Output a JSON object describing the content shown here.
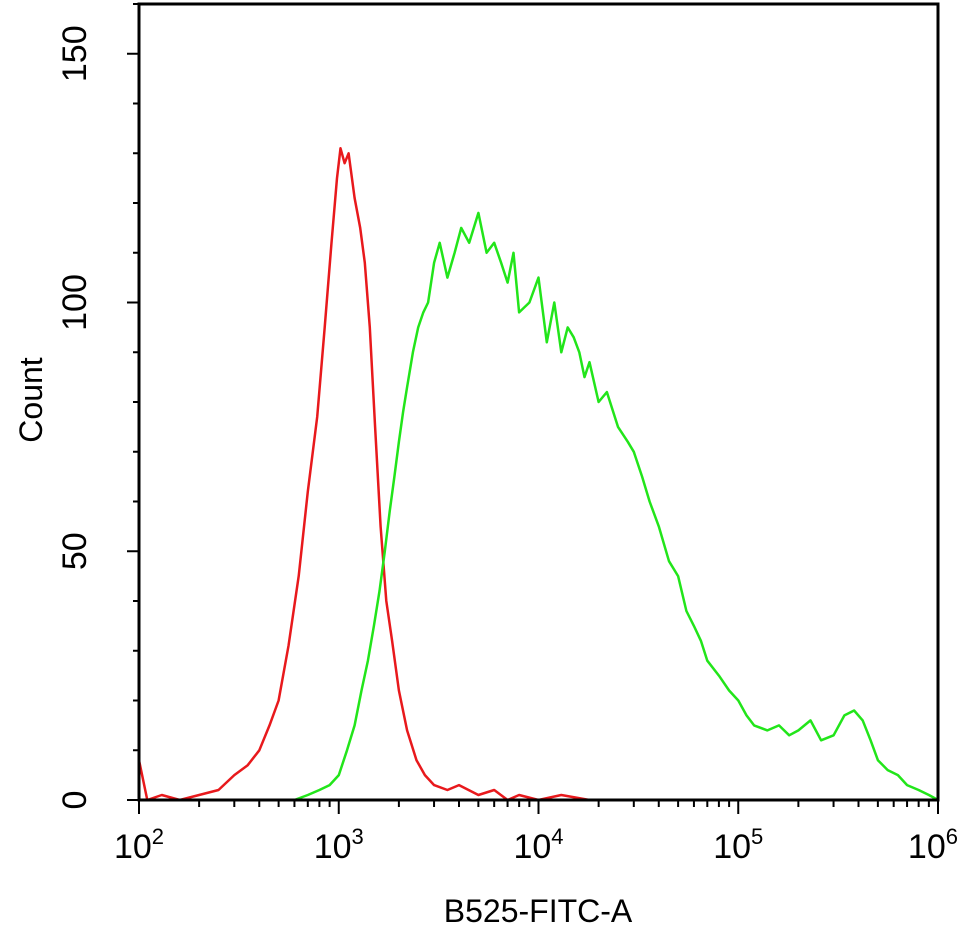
{
  "chart_data": {
    "type": "line",
    "title": "",
    "xlabel": "B525-FITC-A",
    "ylabel": "Count",
    "x_scale": "log",
    "xlim": [
      100,
      1000000
    ],
    "ylim": [
      0,
      160
    ],
    "x_ticks": [
      {
        "value": 100,
        "base": "10",
        "exp": "2"
      },
      {
        "value": 1000,
        "base": "10",
        "exp": "3"
      },
      {
        "value": 10000,
        "base": "10",
        "exp": "4"
      },
      {
        "value": 100000,
        "base": "10",
        "exp": "5"
      },
      {
        "value": 1000000,
        "base": "10",
        "exp": "6"
      }
    ],
    "y_ticks": [
      {
        "value": 0,
        "label": "0"
      },
      {
        "value": 50,
        "label": "50"
      },
      {
        "value": 100,
        "label": "100"
      },
      {
        "value": 150,
        "label": "150"
      }
    ],
    "grid": false,
    "legend": "none",
    "series": [
      {
        "color": "#e8191c",
        "x": [
          100,
          110,
          130,
          160,
          200,
          250,
          300,
          350,
          400,
          450,
          500,
          560,
          630,
          700,
          780,
          850,
          920,
          980,
          1020,
          1070,
          1120,
          1200,
          1280,
          1350,
          1430,
          1520,
          1620,
          1730,
          1850,
          2000,
          2200,
          2450,
          2700,
          3000,
          3500,
          4000,
          5000,
          6000,
          7000,
          8000,
          10000,
          13000,
          18000
        ],
        "y": [
          8,
          0,
          1,
          0,
          1,
          2,
          5,
          7,
          10,
          15,
          20,
          31,
          45,
          62,
          77,
          95,
          112,
          125,
          131,
          128,
          130,
          121,
          115,
          108,
          95,
          75,
          55,
          40,
          32,
          22,
          14,
          8,
          5,
          3,
          2,
          3,
          1,
          2,
          0,
          1,
          0,
          1,
          0
        ]
      },
      {
        "color": "#22e51a",
        "x": [
          600,
          700,
          800,
          900,
          1000,
          1100,
          1200,
          1300,
          1400,
          1500,
          1600,
          1700,
          1800,
          1900,
          2000,
          2100,
          2200,
          2350,
          2500,
          2650,
          2800,
          3000,
          3200,
          3500,
          3800,
          4100,
          4500,
          5000,
          5500,
          6000,
          6500,
          7000,
          7500,
          8000,
          9000,
          10000,
          11000,
          12000,
          13000,
          14000,
          15000,
          16000,
          17000,
          18000,
          20000,
          22000,
          25000,
          28000,
          30000,
          33000,
          36000,
          40000,
          45000,
          50000,
          55000,
          60000,
          65000,
          70000,
          80000,
          90000,
          100000,
          110000,
          120000,
          140000,
          160000,
          180000,
          200000,
          230000,
          260000,
          300000,
          340000,
          380000,
          420000,
          460000,
          500000,
          560000,
          630000,
          700000,
          800000,
          900000,
          1000000
        ],
        "y": [
          0,
          1,
          2,
          3,
          5,
          10,
          15,
          22,
          28,
          35,
          42,
          50,
          58,
          65,
          72,
          78,
          83,
          90,
          95,
          98,
          100,
          108,
          112,
          105,
          110,
          115,
          112,
          118,
          110,
          112,
          108,
          104,
          110,
          98,
          100,
          105,
          92,
          100,
          90,
          95,
          93,
          90,
          85,
          88,
          80,
          82,
          75,
          72,
          70,
          65,
          60,
          55,
          48,
          45,
          38,
          35,
          32,
          28,
          25,
          22,
          20,
          17,
          15,
          14,
          15,
          13,
          14,
          16,
          12,
          13,
          17,
          18,
          16,
          12,
          8,
          6,
          5,
          3,
          2,
          1,
          0
        ]
      }
    ]
  }
}
